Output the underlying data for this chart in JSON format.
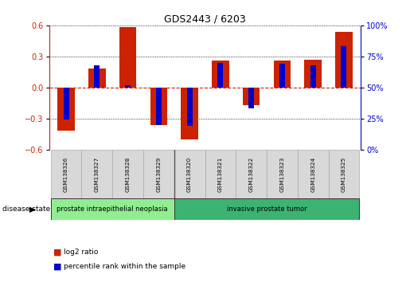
{
  "title": "GDS2443 / 6203",
  "samples": [
    "GSM138326",
    "GSM138327",
    "GSM138328",
    "GSM138329",
    "GSM138320",
    "GSM138321",
    "GSM138322",
    "GSM138323",
    "GSM138324",
    "GSM138325"
  ],
  "log2_ratio": [
    -0.42,
    0.18,
    0.58,
    -0.36,
    -0.5,
    0.26,
    -0.17,
    0.26,
    0.27,
    0.54
  ],
  "percentile_rank": [
    24,
    68,
    52,
    20,
    19,
    70,
    33,
    69,
    68,
    83
  ],
  "disease_groups": [
    {
      "label": "prostate intraepithelial neoplasia",
      "start": 0,
      "end": 4,
      "color": "#90ee90"
    },
    {
      "label": "invasive prostate tumor",
      "start": 4,
      "end": 10,
      "color": "#3cb371"
    }
  ],
  "ylim": [
    -0.6,
    0.6
  ],
  "yticks_left": [
    -0.6,
    -0.3,
    0.0,
    0.3,
    0.6
  ],
  "yticks_right_labels": [
    "0%",
    "25%",
    "50%",
    "75%",
    "100%"
  ],
  "yticks_right_vals": [
    0,
    25,
    50,
    75,
    100
  ],
  "bar_width": 0.55,
  "blue_bar_width": 0.18,
  "red_color": "#cc2200",
  "blue_color": "#0000cc",
  "legend_log2": "log2 ratio",
  "legend_pct": "percentile rank within the sample",
  "disease_state_label": "disease state"
}
